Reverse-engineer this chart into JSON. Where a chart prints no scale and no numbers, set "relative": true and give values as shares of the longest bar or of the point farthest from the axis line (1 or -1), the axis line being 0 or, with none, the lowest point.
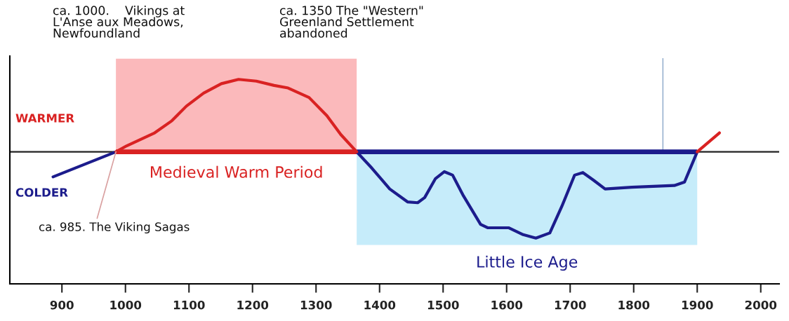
{
  "chart_data": {
    "type": "line",
    "relative": true,
    "series": [
      {
        "color": "#1c1c8c",
        "x": [
          886,
          985,
          1200,
          1364,
          1388,
          1416,
          1444,
          1460,
          1471,
          1488,
          1502,
          1515,
          1532,
          1559,
          1570,
          1603,
          1626,
          1646,
          1668,
          1687,
          1707,
          1720,
          1737,
          1755,
          1797,
          1864,
          1880,
          1900
        ],
        "values": [
          -0.29,
          0,
          null,
          0,
          -0.19,
          -0.43,
          -0.58,
          -0.59,
          -0.53,
          -0.31,
          -0.23,
          -0.27,
          -0.51,
          -0.84,
          -0.88,
          -0.88,
          -0.96,
          -1.0,
          -0.94,
          -0.63,
          -0.27,
          -0.24,
          -0.33,
          -0.43,
          -0.41,
          -0.39,
          -0.35,
          0
        ]
      },
      {
        "color": "#d92222",
        "x": [
          985,
          1002,
          1046,
          1073,
          1096,
          1123,
          1151,
          1178,
          1206,
          1234,
          1256,
          1289,
          1317,
          1339,
          1364,
          1600,
          1900,
          1935
        ],
        "values": [
          0,
          0.07,
          0.22,
          0.36,
          0.53,
          0.68,
          0.79,
          0.84,
          0.82,
          0.77,
          0.74,
          0.63,
          0.42,
          0.2,
          0,
          null,
          0,
          0.22
        ]
      }
    ],
    "xlim": [
      818,
      2029
    ],
    "xticks": [
      900,
      1000,
      1100,
      1200,
      1300,
      1400,
      1500,
      1600,
      1700,
      1800,
      1900,
      2000
    ],
    "bands": [
      {
        "axis": "x",
        "from": 985,
        "to": 1364,
        "label": "Medieval Warm Period",
        "color": "#fbb9bb"
      },
      {
        "axis": "x",
        "from": 1364,
        "to": 1900,
        "label": "Little Ice Age",
        "color": "#c6ecfa"
      }
    ],
    "ref_lines": [
      {
        "axis": "x",
        "value": 1846,
        "color": "#8aa6c8"
      }
    ],
    "annotations": [
      "ca. 1000.    Vikings at\nL'Anse aux Meadows,\nNewfoundland",
      "ca. 1350 The \"Western\"\nGreenland Settlement\nabandoned",
      {
        "text": "ca. 985. The Viking Sagas",
        "x": 985,
        "y": 0
      },
      "WARMER",
      "COLDER"
    ],
    "grid": false,
    "legend": false
  }
}
